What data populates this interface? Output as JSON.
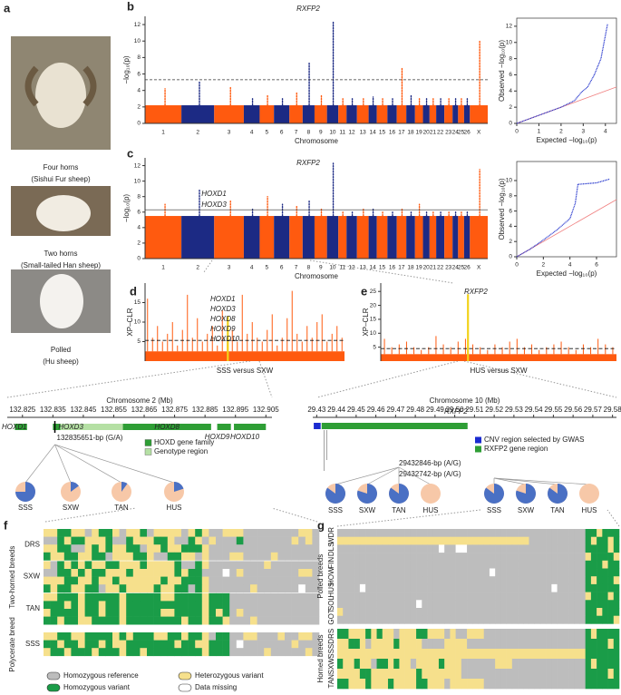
{
  "panel_letters": [
    "a",
    "b",
    "c",
    "d",
    "e",
    "f",
    "g"
  ],
  "sheep": [
    {
      "name": "Four horns",
      "breed": "(Sishui Fur sheep)"
    },
    {
      "name": "Two horns",
      "breed": "(Small-tailed Han sheep)"
    },
    {
      "name": "Polled",
      "breed": "(Hu sheep)"
    }
  ],
  "chromosomes": [
    "1",
    "2",
    "3",
    "4",
    "5",
    "6",
    "7",
    "8",
    "9",
    "10",
    "11",
    "12",
    "13",
    "14",
    "15",
    "16",
    "17",
    "18",
    "19",
    "20",
    "21",
    "22",
    "23",
    "24",
    "25",
    "26",
    "X"
  ],
  "manhattan": [
    {
      "type": "manhattan",
      "gene_labels": [
        "RXFP2"
      ],
      "ylabel": "−log₁₀(p)",
      "xlabel": "Chromosome",
      "ylim": [
        0,
        13
      ],
      "yticks": [
        0,
        2,
        4,
        6,
        8,
        10,
        12
      ],
      "band": 2.2,
      "threshold": 5.3,
      "threshold_style": "dashed",
      "colors": [
        "#ff5a0f",
        "#1c2a84"
      ],
      "peaks": [
        4.2,
        5,
        4.5,
        3,
        3.5,
        3,
        3.8,
        7.3,
        3.5,
        12.3,
        3,
        3,
        3,
        3.2,
        3,
        3,
        6.8,
        3.5,
        3,
        3,
        3,
        3,
        3,
        3,
        3,
        3,
        10
      ],
      "qq": {
        "xlabel": "Expected −log₁₀(p)",
        "ylabel": "Observed −log₁₀(p)",
        "xlim": [
          0,
          4.5
        ],
        "ylim": [
          0,
          13
        ],
        "xticks": [
          0,
          1,
          2,
          3,
          4
        ],
        "yticks": [
          0,
          2,
          4,
          6,
          8,
          10,
          12
        ],
        "x": [
          0,
          1,
          2,
          2.6,
          2.9,
          3.2,
          3.5,
          3.8,
          4.1
        ],
        "y": [
          0,
          1,
          2,
          2.8,
          3.8,
          4.5,
          6,
          8,
          12.3
        ]
      }
    },
    {
      "type": "manhattan",
      "gene_labels": [
        "RXFP2",
        "HOXD1",
        "HOXD3"
      ],
      "ylabel": "−log₁₀(p)",
      "xlabel": "Chromosome",
      "ylim": [
        0,
        13
      ],
      "yticks": [
        0,
        2,
        4,
        6,
        8,
        10,
        12
      ],
      "band": 5.5,
      "threshold": 6.3,
      "threshold_style": "solid",
      "colors": [
        "#ff5a0f",
        "#1c2a84"
      ],
      "peaks": [
        7,
        9,
        7.5,
        6.5,
        8,
        7,
        6.8,
        7.5,
        6.5,
        12.3,
        6,
        6,
        6.5,
        6.5,
        6,
        6,
        6.5,
        6,
        7,
        6,
        6,
        6,
        6,
        6,
        6,
        6,
        11.5
      ],
      "qq": {
        "xlabel": "Expected −log₁₀(p)",
        "ylabel": "Observed −log₁₀(p)",
        "xlim": [
          0,
          7.5
        ],
        "ylim": [
          0,
          12.5
        ],
        "xticks": [
          0,
          2,
          4,
          6
        ],
        "yticks": [
          0,
          2,
          4,
          6,
          8,
          10
        ],
        "x": [
          0,
          1,
          2,
          3,
          4,
          4.4,
          4.6,
          6,
          6.6,
          7
        ],
        "y": [
          0,
          1,
          2.2,
          3.5,
          5,
          7,
          9.5,
          9.7,
          10,
          10.2
        ]
      }
    }
  ],
  "xpclr": [
    {
      "type": "xpclr",
      "gene_labels": [
        "HOXD1",
        "HOXD3",
        "HOXD8",
        "HOXD9",
        "HOXD10"
      ],
      "ylabel": "XP–CLR",
      "xlabel": "SSS versus SXW",
      "ylim": [
        0,
        20
      ],
      "yticks": [
        5,
        10,
        15
      ],
      "threshold": 5.3,
      "band": 2.5,
      "color": "#ff5a0f",
      "highlight_color": "#f2d21a",
      "selected": 11.5,
      "peaks": [
        16,
        6,
        9,
        5,
        7,
        10,
        4,
        8,
        17,
        6,
        11,
        5,
        7,
        9,
        4,
        13,
        6,
        8,
        5,
        17,
        7,
        10,
        6,
        5,
        8,
        12,
        4,
        6,
        11,
        18,
        7,
        5,
        9,
        6,
        10,
        12,
        5,
        7,
        9,
        6
      ]
    },
    {
      "type": "xpclr",
      "gene_labels": [
        "RXFP2"
      ],
      "ylabel": "XP–CLR",
      "xlabel": "HUS versus SXW",
      "ylim": [
        0,
        28
      ],
      "yticks": [
        5,
        10,
        15,
        20,
        25
      ],
      "threshold": 4.5,
      "band": 2.5,
      "color": "#ff5a0f",
      "highlight_color": "#f2d21a",
      "selected": 24,
      "peaks": [
        8,
        5,
        6,
        7,
        5,
        4,
        5,
        9,
        6,
        5,
        7,
        8,
        6,
        5,
        4,
        6,
        5,
        7,
        8,
        5,
        6,
        4,
        5,
        6,
        7,
        5,
        4,
        6,
        5,
        8,
        6,
        5
      ]
    }
  ],
  "track_chr2": {
    "title": "Chromosome 2 (Mb)",
    "xlim": [
      132.82,
      132.907
    ],
    "xticks": [
      132.825,
      132.835,
      132.845,
      132.855,
      132.865,
      132.875,
      132.885,
      132.895,
      132.905
    ],
    "genes": [
      {
        "name": "HOXD1",
        "range": [
          132.8225,
          132.8265
        ]
      },
      {
        "name": "HOXD3",
        "range": [
          132.835,
          132.8375
        ]
      },
      {
        "name": "HOXD8",
        "range": [
          132.858,
          132.887
        ]
      },
      {
        "name": "HOXD9",
        "range": [
          132.889,
          132.8935
        ]
      },
      {
        "name": "HOXD10",
        "range": [
          132.8945,
          132.905
        ]
      }
    ],
    "gene_color": "#2e9e35",
    "region": [
      132.8375,
      132.858
    ],
    "region_color": "#b5e0a4",
    "snps": [
      {
        "label": "132835651-bp (G/A)",
        "position": 132.835651
      }
    ],
    "legend": [
      "HOXD gene family",
      "Genotype region"
    ],
    "pie_colors": [
      "#4a70c4",
      "#f7c8a8"
    ],
    "pies": [
      {
        "breeds": [
          "SSS",
          "SXW",
          "TAN",
          "HUS"
        ],
        "values": [
          75,
          15,
          10,
          20
        ]
      }
    ]
  },
  "track_chr10": {
    "title": "Chromosome 10 (Mb)",
    "xlim": [
      29.428,
      29.582
    ],
    "xticks": [
      29.43,
      29.44,
      29.45,
      29.46,
      29.47,
      29.48,
      29.49,
      {
        "value": 29.5,
        "label": "29.50"
      },
      29.51,
      29.52,
      29.53,
      29.54,
      29.55,
      29.56,
      29.57,
      29.58
    ],
    "genes": [
      {
        "name": "RXFP2",
        "range": [
          29.4325,
          29.5065
        ]
      }
    ],
    "gene_color": "#2e9e35",
    "cnv": [
      29.4285,
      29.432
    ],
    "cnv_color": "#1a2bd0",
    "snps": [
      {
        "label": "29432846-bp (A/G)",
        "position": 29.432846
      },
      {
        "label": "29432742-bp (A/G)",
        "position": 29.432742
      }
    ],
    "legend": [
      "CNV region selected by GWAS",
      "RXFP2 gene region"
    ],
    "pie_colors": [
      "#4a70c4",
      "#f7c8a8"
    ],
    "pies": [
      {
        "breeds": [
          "SSS",
          "SXW",
          "TAN",
          "HUS"
        ],
        "values": [
          85,
          80,
          85,
          0
        ]
      },
      {
        "breeds": [
          "SSS",
          "SXW",
          "TAN",
          "HUS"
        ],
        "values": [
          85,
          80,
          85,
          0
        ]
      }
    ]
  },
  "genotype_colors": {
    "r": "#bdbdbd",
    "h": "#f6e08c",
    "v": "#1a9c48",
    "m": "#ffffff"
  },
  "heat_f": {
    "blocks": [
      {
        "title": "Two-horned breeds",
        "groups": [
          {
            "name": "DRS",
            "rows": [
              "hhvvhhrhvvhrhhvrhhhhrhvhrrhhhrrrrrrrrhhr",
              "rrvhvvhhhvrrvhhhvvhrrvhrhrrrvrrrrrrrhrhr",
              "hhvvrrhvhvhhvvrhhvhhvvvhrrrrrrrrrrrrrrrr",
              "vhhvvhhvvrhhhvvhrrvvhhrhrrrhhrrrrhrrrrrr"
            ]
          },
          {
            "name": "SXW",
            "rows": [
              "hrvhvhvhhvvhhhvhhhhvrrvhrrrrrrrrhrrrrrrr",
              "rrvvhvhvvhhhvhhhhhhvhvvrrrmrhrrrrrrrrhhr",
              "hhhvvhhvhhvhhhhhhvhhvvvhrrrrrrrrrrrrrrrr",
              "vhvvhhvvrhhvhhhhvhhvvrvhrrrrrrhrrrrrrmrr"
            ]
          },
          {
            "name": "TAN",
            "rows": [
              "hhvvvhvvvvvhvvvvvhhvvvvhvvvrrrrrrrrrrrrr",
              "vvvhvhvvhvvhvvvvvvvvvvvhvvvrrrrrrrrrrrrr",
              "hvvvvhvvhvvhvvvvvhhvvvvhvhvrhrrrrrrrrrrr",
              "vvhvvhhvvvvhvvvvvvvvhvvhvvhrrrhrrrrrrrrr"
            ]
          }
        ]
      },
      {
        "title": "Polycerate breed",
        "groups": [
          {
            "name": "SSS",
            "rows": [
              "hhvvhhvvvvhvhvvvhhvvhvvhrvvrrhhrrrhrrhhr",
              "vvhvvhvvhvhhvvvvvvvhvvhhvvvrmrrrrrrrhrrr",
              "hvvhvvvhvvvhvvhvvvvvvvvhvvvrrrrrhrrrrrhr"
            ]
          }
        ]
      }
    ],
    "legend": [
      {
        "label": "Homozygous reference",
        "color": "#bdbdbd"
      },
      {
        "label": "Heterozygous variant",
        "color": "#f6e08c"
      },
      {
        "label": "Homozygous variant",
        "color": "#1a9c48"
      },
      {
        "label": "Data missing",
        "color": "#ffffff"
      }
    ]
  },
  "heat_g": {
    "groups": [
      {
        "title": "Polled breeds",
        "breeds": [
          "WDR",
          "DLS",
          "FIN",
          "HOW",
          "HUS",
          "SOL",
          "GOT"
        ],
        "rows": [
          "rrrrrrrrrrrrrrrrrrrrrrrrrrrrrrrrrrrrrrrrrrrrvvhvvv",
          "hhhhhhhhhhhhhhhhhhhhhhhhhhhhhhhhhhrrrrrrrrrrvhvvhv",
          "rrrrrrrrrrrrrrrrrrmrrmmrrrrrrrrrrrrrrrrrrrrrvvvvhv",
          "rrrrrrrrrrrrrrrrrrrrrrrrrrrrrrrrrrrrrrrrrrrrhvvvvh",
          "rrrrrrrrrrrrrrrrrrrrrrrrrrrrrrrrrrrrrrrrrrrrvvvhvv",
          "rrrrrrrrrrrrrrrrrrrrrrrrrrrmrrrrrrrrrrrrrrrrvvvvvv",
          "rrrrrrrrrrrrrrrrrrrrrrrrrrrrrrrrrrrrrrrrrrrrvhvvvh",
          "rrrrmrrrrrrrrrrrrrrrrrrrrrrrrrrrrrrrrrmrrrrrvvvvvv",
          "rrrrrrrrrrrrrrrrrrrrrrrrrrrrrrrrrrrrrrrrrrrrhvvvhv",
          "rrrrrrrrrrrrrrmrrrrrrrrrrrrrrrrrrrrrrrrrrrrrvvvvvv",
          "hrrrrrrrrrrrrrrrrrrrrrrrrrrrrrrrrrrrrrrrrrrrvvhvvv",
          "rrrrrrrrrrrrrrrrrrrrrrrrrrrrrrrrrrrrrrrrrrrrvvvvvh"
        ]
      },
      {
        "title": "Horned breeds",
        "breeds": [
          "DRS",
          "SSS",
          "SXW",
          "TAN"
        ],
        "rows": [
          "vvhhhvhvhhrhhhvvhhhrhrrhhhrrrrrrrrrrrrrrrrrrvhvvvv",
          "hhvvhrhhhhvhhhhrrrrhhhhrrrrrrrrrrrrrrrrrrrrrvvvvhv",
          "hhhhhhhhhhhhhhhhhhhhhhhhhhhhhhhhhhhhhhhhhhhhvvvvvv",
          "vhhvhhrvvhvhhrhhhhvhhhrrrrrrhhhrrrrrrrrrrrrrvhvvvv",
          "hhhhvvhhhhhhhhvhhhhhhhrrrrrrrrrrrrrrrrrrrrrrvvvvhv",
          "vvhhhvhhhvhhhhvvhhhrhhhhhhrrrrrrrrrrrrrrrrrrvvvvvv"
        ]
      }
    ]
  }
}
